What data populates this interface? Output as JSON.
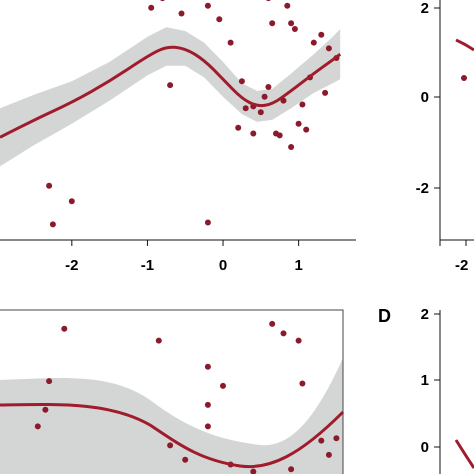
{
  "chart_data": [
    {
      "panel": "top-left",
      "type": "scatter",
      "title": "",
      "xlabel": "",
      "ylabel": "",
      "xlim": [
        -2.95,
        1.6
      ],
      "ylim": [
        -3.4,
        2.7
      ],
      "xticks": [
        -2,
        -1,
        0,
        1
      ],
      "xtick_labels": [
        "-2",
        "-1",
        "0",
        "1"
      ],
      "grid": false,
      "colors": {
        "points": "#8b1a2b",
        "smooth": "#a01c2c",
        "band": "#d4d6d6"
      },
      "points": [
        {
          "x": -0.95,
          "y": 2.5
        },
        {
          "x": -0.8,
          "y": 2.75
        },
        {
          "x": -0.55,
          "y": 2.35
        },
        {
          "x": -0.2,
          "y": 2.55
        },
        {
          "x": -0.05,
          "y": 2.2
        },
        {
          "x": 0.1,
          "y": 1.6
        },
        {
          "x": -0.7,
          "y": 0.5
        },
        {
          "x": -2.3,
          "y": -2.1
        },
        {
          "x": -2.25,
          "y": -3.1
        },
        {
          "x": -2.0,
          "y": -2.5
        },
        {
          "x": -0.2,
          "y": -3.05
        },
        {
          "x": 0.2,
          "y": -0.6
        },
        {
          "x": 0.3,
          "y": -0.1
        },
        {
          "x": 0.4,
          "y": -0.75
        },
        {
          "x": 0.5,
          "y": -0.2
        },
        {
          "x": 0.55,
          "y": 0.2
        },
        {
          "x": 0.6,
          "y": 0.45
        },
        {
          "x": 0.65,
          "y": 2.1
        },
        {
          "x": 0.7,
          "y": -0.75
        },
        {
          "x": 0.75,
          "y": -0.8
        },
        {
          "x": 0.8,
          "y": 0.1
        },
        {
          "x": 0.85,
          "y": 2.55
        },
        {
          "x": 0.9,
          "y": -1.1
        },
        {
          "x": 0.9,
          "y": 2.1
        },
        {
          "x": 0.95,
          "y": 1.95
        },
        {
          "x": 1.0,
          "y": -0.5
        },
        {
          "x": 1.05,
          "y": 0.0
        },
        {
          "x": 1.1,
          "y": -0.65
        },
        {
          "x": 1.15,
          "y": 0.7
        },
        {
          "x": 1.2,
          "y": 1.6
        },
        {
          "x": 1.3,
          "y": 1.8
        },
        {
          "x": 1.35,
          "y": 0.3
        },
        {
          "x": 1.4,
          "y": 1.45
        },
        {
          "x": 1.5,
          "y": 1.2
        },
        {
          "x": 0.6,
          "y": 2.75
        },
        {
          "x": 0.4,
          "y": -0.05
        },
        {
          "x": 0.25,
          "y": 0.6
        }
      ],
      "smooth": [
        {
          "x": -2.95,
          "y": -0.85
        },
        {
          "x": -2.5,
          "y": -0.4
        },
        {
          "x": -2.0,
          "y": 0.05
        },
        {
          "x": -1.5,
          "y": 0.6
        },
        {
          "x": -1.0,
          "y": 1.25
        },
        {
          "x": -0.75,
          "y": 1.5
        },
        {
          "x": -0.5,
          "y": 1.45
        },
        {
          "x": -0.25,
          "y": 1.15
        },
        {
          "x": 0.0,
          "y": 0.65
        },
        {
          "x": 0.25,
          "y": 0.15
        },
        {
          "x": 0.45,
          "y": -0.05
        },
        {
          "x": 0.65,
          "y": 0.0
        },
        {
          "x": 0.9,
          "y": 0.35
        },
        {
          "x": 1.2,
          "y": 0.8
        },
        {
          "x": 1.45,
          "y": 1.15
        },
        {
          "x": 1.55,
          "y": 1.3
        }
      ],
      "band_halfwidth": [
        0.75,
        0.65,
        0.55,
        0.5,
        0.5,
        0.5,
        0.45,
        0.45,
        0.45,
        0.4,
        0.4,
        0.4,
        0.45,
        0.5,
        0.6,
        0.65
      ]
    },
    {
      "panel": "top-right",
      "type": "scatter",
      "yticks": [
        2,
        0,
        -2
      ],
      "ytick_labels": [
        "2",
        "0",
        "-2"
      ],
      "xtick_labels": [
        "-2"
      ],
      "colors": {
        "points": "#8b1a2b",
        "smooth": "#a01c2c"
      },
      "points": [
        {
          "x": 0,
          "y": 0.5
        }
      ],
      "smooth": [
        {
          "x": 0,
          "y": 1.25
        },
        {
          "x": 1,
          "y": 1.1
        }
      ]
    },
    {
      "panel": "bottom-left",
      "type": "scatter",
      "colors": {
        "points": "#8b1a2b",
        "smooth": "#a01c2c",
        "band": "#d4d6d6"
      },
      "points": [
        {
          "x": -2.3,
          "y": 1.35
        },
        {
          "x": -2.35,
          "y": 0.75
        },
        {
          "x": -2.45,
          "y": 0.4
        },
        {
          "x": -2.1,
          "y": 2.45
        },
        {
          "x": -0.85,
          "y": 2.2
        },
        {
          "x": -0.2,
          "y": 1.65
        },
        {
          "x": -0.2,
          "y": 0.85
        },
        {
          "x": -0.2,
          "y": 0.4
        },
        {
          "x": 0.0,
          "y": 1.25
        },
        {
          "x": 0.65,
          "y": 2.55
        },
        {
          "x": 0.8,
          "y": 2.35
        },
        {
          "x": 1.0,
          "y": 2.2
        },
        {
          "x": 1.05,
          "y": 1.3
        },
        {
          "x": 0.4,
          "y": -0.55
        },
        {
          "x": -0.5,
          "y": -0.3
        },
        {
          "x": 0.1,
          "y": -0.4
        },
        {
          "x": 1.3,
          "y": 0.1
        },
        {
          "x": 1.4,
          "y": -0.2
        },
        {
          "x": 1.5,
          "y": 0.15
        },
        {
          "x": 0.9,
          "y": -0.5
        },
        {
          "x": -0.7,
          "y": 0.0
        }
      ]
    },
    {
      "panel": "bottom-right",
      "type": "scatter",
      "label": "D",
      "yticks": [
        2,
        1,
        0
      ],
      "ytick_labels": [
        "2",
        "1",
        "0"
      ]
    }
  ]
}
